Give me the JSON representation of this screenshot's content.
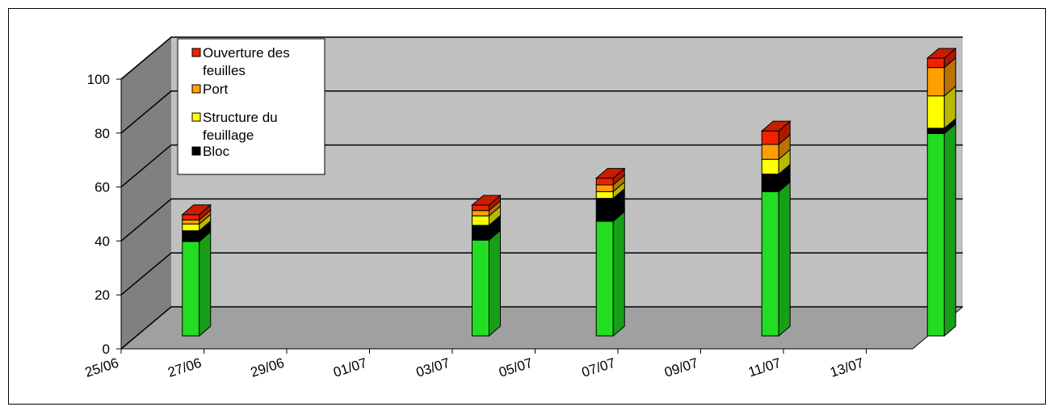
{
  "chart_data": {
    "type": "bar",
    "stacked": true,
    "three_d": true,
    "x": [
      "26/06",
      "03/07",
      "06/07",
      "10/07",
      "14/07"
    ],
    "x_ticks": [
      "25/06",
      "27/06",
      "29/06",
      "01/07",
      "03/07",
      "05/07",
      "07/07",
      "09/07",
      "11/07",
      "13/07"
    ],
    "y_ticks": [
      "0",
      "20",
      "40",
      "60",
      "80",
      "100"
    ],
    "ylim": [
      0,
      100
    ],
    "grid": true,
    "legend_position": "top-left",
    "series": [
      {
        "name": "Bloc",
        "color": "#22dd22",
        "values": [
          35,
          35.5,
          42.5,
          53.5,
          75
        ]
      },
      {
        "name": "Bloc",
        "color": "#000000",
        "values": [
          4,
          5.5,
          8.5,
          6.5,
          2
        ]
      },
      {
        "name": "Structure du feuillage",
        "color": "#ffff00",
        "values": [
          2.5,
          3.5,
          2.5,
          5.5,
          12
        ]
      },
      {
        "name": "Port",
        "color": "#ffa000",
        "values": [
          1.5,
          2,
          2.5,
          5.5,
          10.5
        ]
      },
      {
        "name": "Ouverture des feuilles",
        "color": "#ee2200",
        "values": [
          2,
          2,
          2.5,
          5,
          3.5
        ]
      }
    ],
    "legend": [
      {
        "label": "Ouverture des feuilles",
        "color": "#ee2200"
      },
      {
        "label": "Port",
        "color": "#ffa000"
      },
      {
        "label": "Structure du feuillage",
        "color": "#ffff00"
      },
      {
        "label": "Bloc",
        "color": "#000000"
      }
    ]
  }
}
